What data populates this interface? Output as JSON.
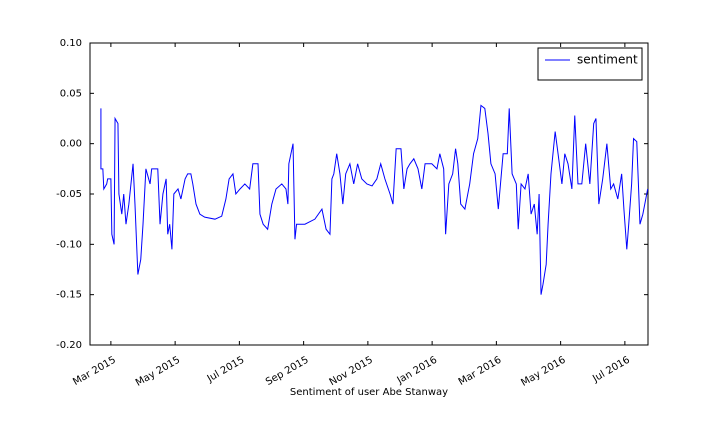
{
  "chart_data": {
    "type": "line",
    "xlabel": "Sentiment of user Abe Stanway",
    "x": [
      1.69,
      1.69,
      1.75,
      1.78,
      1.87,
      1.9,
      2.0,
      2.03,
      2.1,
      2.13,
      2.22,
      2.25,
      2.34,
      2.4,
      2.47,
      2.56,
      2.69,
      2.75,
      2.84,
      2.93,
      3.0,
      3.09,
      3.22,
      3.27,
      3.46,
      3.53,
      3.62,
      3.72,
      3.77,
      3.83,
      3.9,
      3.96,
      4.09,
      4.18,
      4.31,
      4.39,
      4.49,
      4.55,
      4.65,
      4.77,
      4.92,
      5.24,
      5.45,
      5.58,
      5.68,
      5.8,
      5.89,
      6.02,
      6.17,
      6.32,
      6.42,
      6.58,
      6.64,
      6.74,
      6.88,
      7.01,
      7.14,
      7.32,
      7.45,
      7.51,
      7.54,
      7.67,
      7.73,
      7.78,
      8.04,
      8.35,
      8.57,
      8.7,
      8.82,
      8.88,
      8.94,
      9.03,
      9.13,
      9.22,
      9.31,
      9.44,
      9.56,
      9.68,
      9.81,
      9.97,
      10.13,
      10.28,
      10.4,
      10.53,
      10.69,
      10.78,
      10.88,
      11.03,
      11.12,
      11.22,
      11.31,
      11.43,
      11.56,
      11.68,
      11.78,
      11.99,
      12.15,
      12.24,
      12.36,
      12.42,
      12.52,
      12.64,
      12.73,
      12.8,
      12.89,
      13.02,
      13.17,
      13.29,
      13.42,
      13.52,
      13.64,
      13.74,
      13.83,
      13.96,
      14.06,
      14.21,
      14.34,
      14.4,
      14.49,
      14.62,
      14.68,
      14.77,
      14.89,
      14.99,
      15.08,
      15.18,
      15.27,
      15.33,
      15.39,
      15.45,
      15.55,
      15.61,
      15.7,
      15.83,
      15.92,
      16.04,
      16.13,
      16.23,
      16.35,
      16.44,
      16.54,
      16.66,
      16.78,
      16.91,
      17.03,
      17.1,
      17.19,
      17.31,
      17.44,
      17.56,
      17.65,
      17.78,
      17.9,
      17.97,
      18.06,
      18.12,
      18.21,
      18.27,
      18.37,
      18.47,
      18.56,
      18.62,
      18.71
    ],
    "series": [
      {
        "name": "sentiment",
        "color": "#0000ff",
        "values": [
          0.035,
          -0.025,
          -0.025,
          -0.045,
          -0.04,
          -0.035,
          -0.035,
          -0.09,
          -0.1,
          0.025,
          0.02,
          -0.05,
          -0.07,
          -0.05,
          -0.08,
          -0.06,
          -0.02,
          -0.06,
          -0.13,
          -0.115,
          -0.08,
          -0.025,
          -0.04,
          -0.025,
          -0.025,
          -0.08,
          -0.05,
          -0.035,
          -0.09,
          -0.08,
          -0.105,
          -0.05,
          -0.045,
          -0.055,
          -0.035,
          -0.03,
          -0.03,
          -0.04,
          -0.06,
          -0.07,
          -0.073,
          -0.075,
          -0.072,
          -0.055,
          -0.035,
          -0.03,
          -0.05,
          -0.045,
          -0.04,
          -0.045,
          -0.02,
          -0.02,
          -0.07,
          -0.08,
          -0.085,
          -0.06,
          -0.045,
          -0.04,
          -0.045,
          -0.06,
          -0.02,
          0.0,
          -0.095,
          -0.08,
          -0.08,
          -0.075,
          -0.065,
          -0.085,
          -0.09,
          -0.035,
          -0.03,
          -0.01,
          -0.03,
          -0.06,
          -0.03,
          -0.02,
          -0.04,
          -0.02,
          -0.035,
          -0.04,
          -0.042,
          -0.035,
          -0.02,
          -0.035,
          -0.05,
          -0.06,
          -0.005,
          -0.005,
          -0.045,
          -0.025,
          -0.02,
          -0.015,
          -0.025,
          -0.045,
          -0.02,
          -0.02,
          -0.025,
          -0.01,
          -0.025,
          -0.09,
          -0.04,
          -0.03,
          -0.005,
          -0.02,
          -0.06,
          -0.065,
          -0.04,
          -0.01,
          0.005,
          0.038,
          0.035,
          0.01,
          -0.02,
          -0.03,
          -0.065,
          -0.01,
          -0.01,
          0.035,
          -0.03,
          -0.04,
          -0.085,
          -0.04,
          -0.045,
          -0.03,
          -0.07,
          -0.06,
          -0.09,
          -0.05,
          -0.15,
          -0.14,
          -0.12,
          -0.08,
          -0.03,
          0.012,
          -0.01,
          -0.04,
          -0.01,
          -0.02,
          -0.045,
          0.028,
          -0.04,
          -0.04,
          0.0,
          -0.04,
          0.02,
          0.025,
          -0.06,
          -0.035,
          0.0,
          -0.045,
          -0.04,
          -0.055,
          -0.03,
          -0.065,
          -0.105,
          -0.08,
          -0.04,
          0.005,
          0.002,
          -0.08,
          -0.07,
          -0.06,
          -0.045
        ]
      }
    ],
    "xlim": [
      1.35,
      18.72
    ],
    "xticks": [
      {
        "value": 2,
        "label": "Mar 2015"
      },
      {
        "value": 4,
        "label": "May 2015"
      },
      {
        "value": 6,
        "label": "Jul 2015"
      },
      {
        "value": 8,
        "label": "Sep 2015"
      },
      {
        "value": 10,
        "label": "Nov 2015"
      },
      {
        "value": 12,
        "label": "Jan 2016"
      },
      {
        "value": 14,
        "label": "Mar 2016"
      },
      {
        "value": 16,
        "label": "May 2016"
      },
      {
        "value": 18,
        "label": "Jul 2016"
      }
    ],
    "ylim": [
      -0.2,
      0.1
    ],
    "yticks": [
      {
        "value": -0.2,
        "label": "-0.20"
      },
      {
        "value": -0.15,
        "label": "-0.15"
      },
      {
        "value": -0.1,
        "label": "-0.10"
      },
      {
        "value": -0.05,
        "label": "-0.05"
      },
      {
        "value": 0,
        "label": "0.00"
      },
      {
        "value": 0.05,
        "label": "0.05"
      },
      {
        "value": 0.1,
        "label": "0.10"
      }
    ],
    "legend": "upper right"
  }
}
